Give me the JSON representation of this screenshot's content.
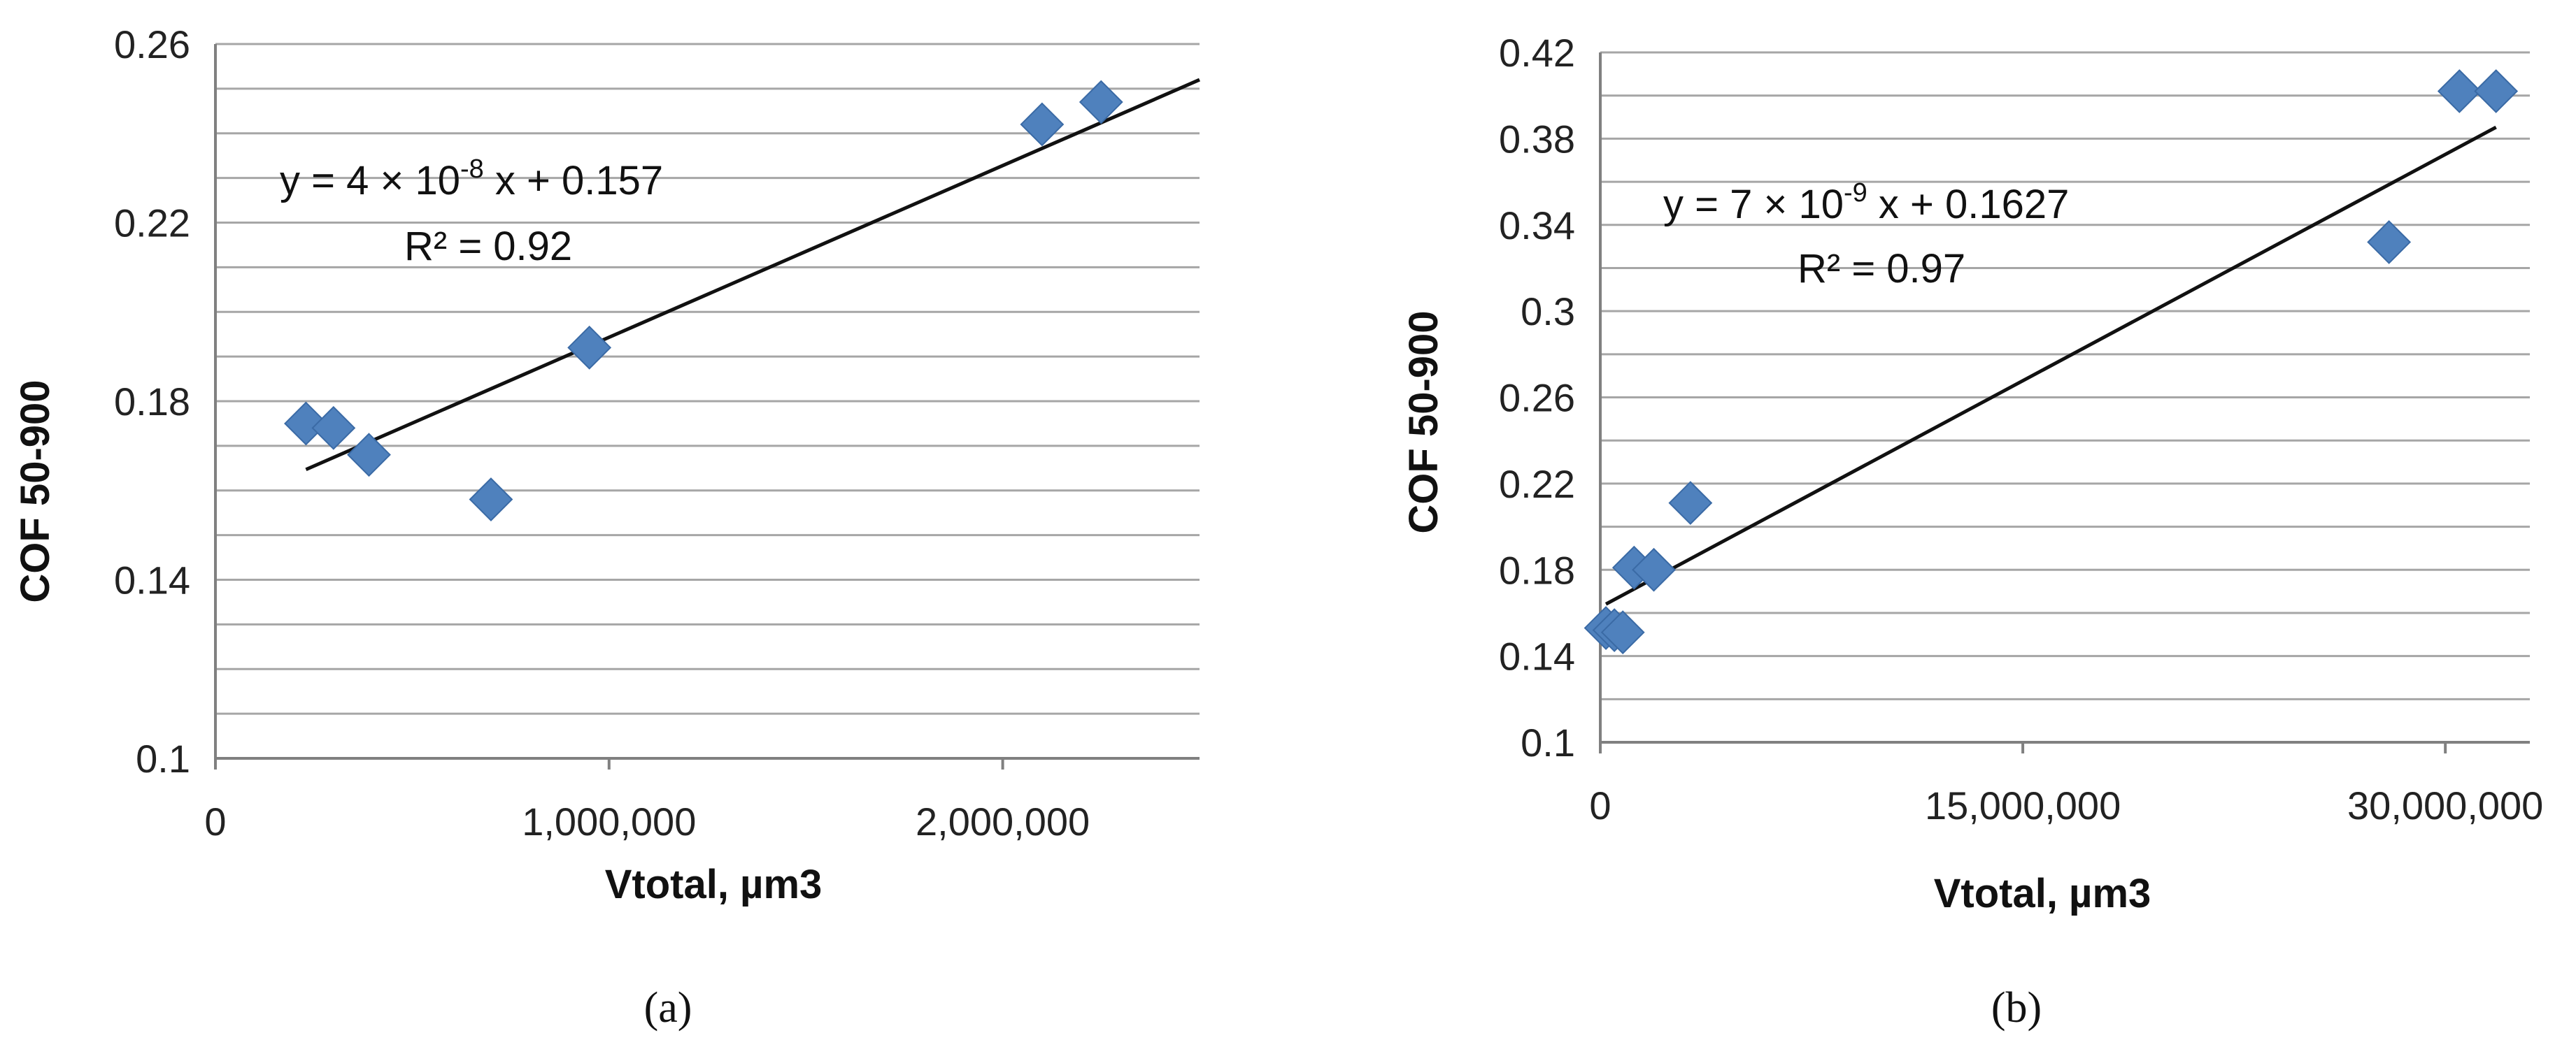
{
  "chart_data": [
    {
      "type": "scatter",
      "panel_label": "(a)",
      "xlabel": "Vtotal, µm3",
      "ylabel": "COF 50-900",
      "xlim": [
        0,
        2500000
      ],
      "ylim": [
        0.1,
        0.26
      ],
      "x_ticks": [
        0,
        1000000,
        2000000
      ],
      "x_tick_labels": [
        "0",
        "1,000,000",
        "2,000,000"
      ],
      "y_ticks": [
        0.1,
        0.14,
        0.18,
        0.22,
        0.26
      ],
      "y_tick_labels": [
        "0.1",
        "0.14",
        "0.18",
        "0.22",
        "0.26"
      ],
      "grid": true,
      "points": [
        {
          "x": 230000,
          "y": 0.175
        },
        {
          "x": 300000,
          "y": 0.174
        },
        {
          "x": 390000,
          "y": 0.168
        },
        {
          "x": 700000,
          "y": 0.158
        },
        {
          "x": 950000,
          "y": 0.192
        },
        {
          "x": 2100000,
          "y": 0.242
        },
        {
          "x": 2250000,
          "y": 0.247
        }
      ],
      "trendline": {
        "x": [
          230000,
          2500000
        ],
        "y": [
          0.1647,
          0.252
        ],
        "equation_main": "y = 4 × 10",
        "equation_exp": "-8",
        "equation_tail": " x + 0.157",
        "r2_label": "R² = 0.92"
      }
    },
    {
      "type": "scatter",
      "panel_label": "(b)",
      "xlabel": "Vtotal, µm3",
      "ylabel": "COF 50-900",
      "xlim": [
        0,
        33000000
      ],
      "ylim": [
        0.1,
        0.42
      ],
      "x_ticks": [
        0,
        15000000,
        30000000
      ],
      "x_tick_labels": [
        "0",
        "15,000,000",
        "30,000,000"
      ],
      "y_ticks": [
        0.1,
        0.14,
        0.18,
        0.22,
        0.26,
        0.3,
        0.34,
        0.38,
        0.42
      ],
      "y_tick_labels": [
        "0.1",
        "0.14",
        "0.18",
        "0.22",
        "0.26",
        "0.3",
        "0.34",
        "0.38",
        "0.42"
      ],
      "grid": true,
      "points": [
        {
          "x": 200000,
          "y": 0.153
        },
        {
          "x": 500000,
          "y": 0.152
        },
        {
          "x": 800000,
          "y": 0.151
        },
        {
          "x": 1200000,
          "y": 0.181
        },
        {
          "x": 1900000,
          "y": 0.18
        },
        {
          "x": 3200000,
          "y": 0.211
        },
        {
          "x": 28000000,
          "y": 0.332
        },
        {
          "x": 30500000,
          "y": 0.402
        },
        {
          "x": 31800000,
          "y": 0.402
        }
      ],
      "trendline": {
        "x": [
          200000,
          31800000
        ],
        "y": [
          0.1641,
          0.3853
        ],
        "equation_main": "y = 7 × 10",
        "equation_exp": "-9",
        "equation_tail": " x + 0.1627",
        "r2_label": "R² = 0.97"
      }
    }
  ]
}
